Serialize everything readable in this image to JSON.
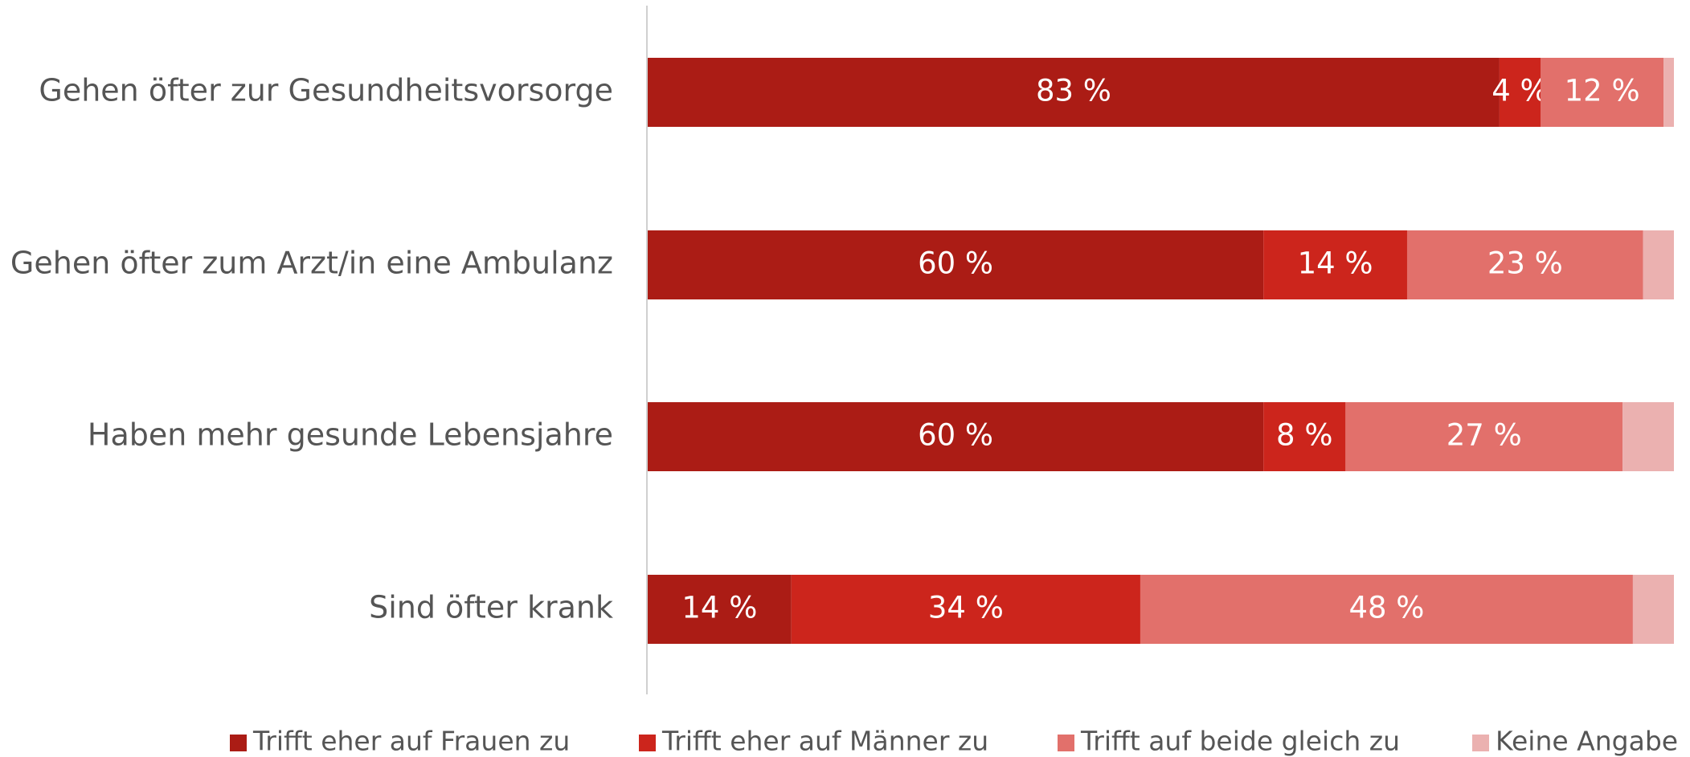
{
  "chart_data": {
    "type": "stacked-barh",
    "categories": [
      "Gehen öfter zur Gesundheitsvorsorge",
      "Gehen öfter zum Arzt/in eine Ambulanz",
      "Haben mehr gesunde Lebensjahre",
      "Sind öfter krank"
    ],
    "series": [
      {
        "name": "Trifft eher auf Frauen zu",
        "color": "#ab1c15",
        "values": [
          83,
          60,
          60,
          14
        ],
        "value_labels": [
          "83 %",
          "60 %",
          "60 %",
          "14 %"
        ]
      },
      {
        "name": "Trifft eher auf Männer zu",
        "color": "#cc251c",
        "values": [
          4,
          14,
          8,
          34
        ],
        "value_labels": [
          "4 %",
          "14 %",
          "8 %",
          "34 %"
        ]
      },
      {
        "name": "Trifft auf beide gleich zu",
        "color": "#e2706b",
        "values": [
          12,
          23,
          27,
          48
        ],
        "value_labels": [
          "12 %",
          "23 %",
          "27 %",
          "48 %"
        ]
      },
      {
        "name": "Keine Angabe",
        "color": "#ebb1b0",
        "values": [
          1,
          3,
          5,
          4
        ]
      }
    ],
    "xlim": [
      0,
      100
    ],
    "legend": "bottom"
  }
}
